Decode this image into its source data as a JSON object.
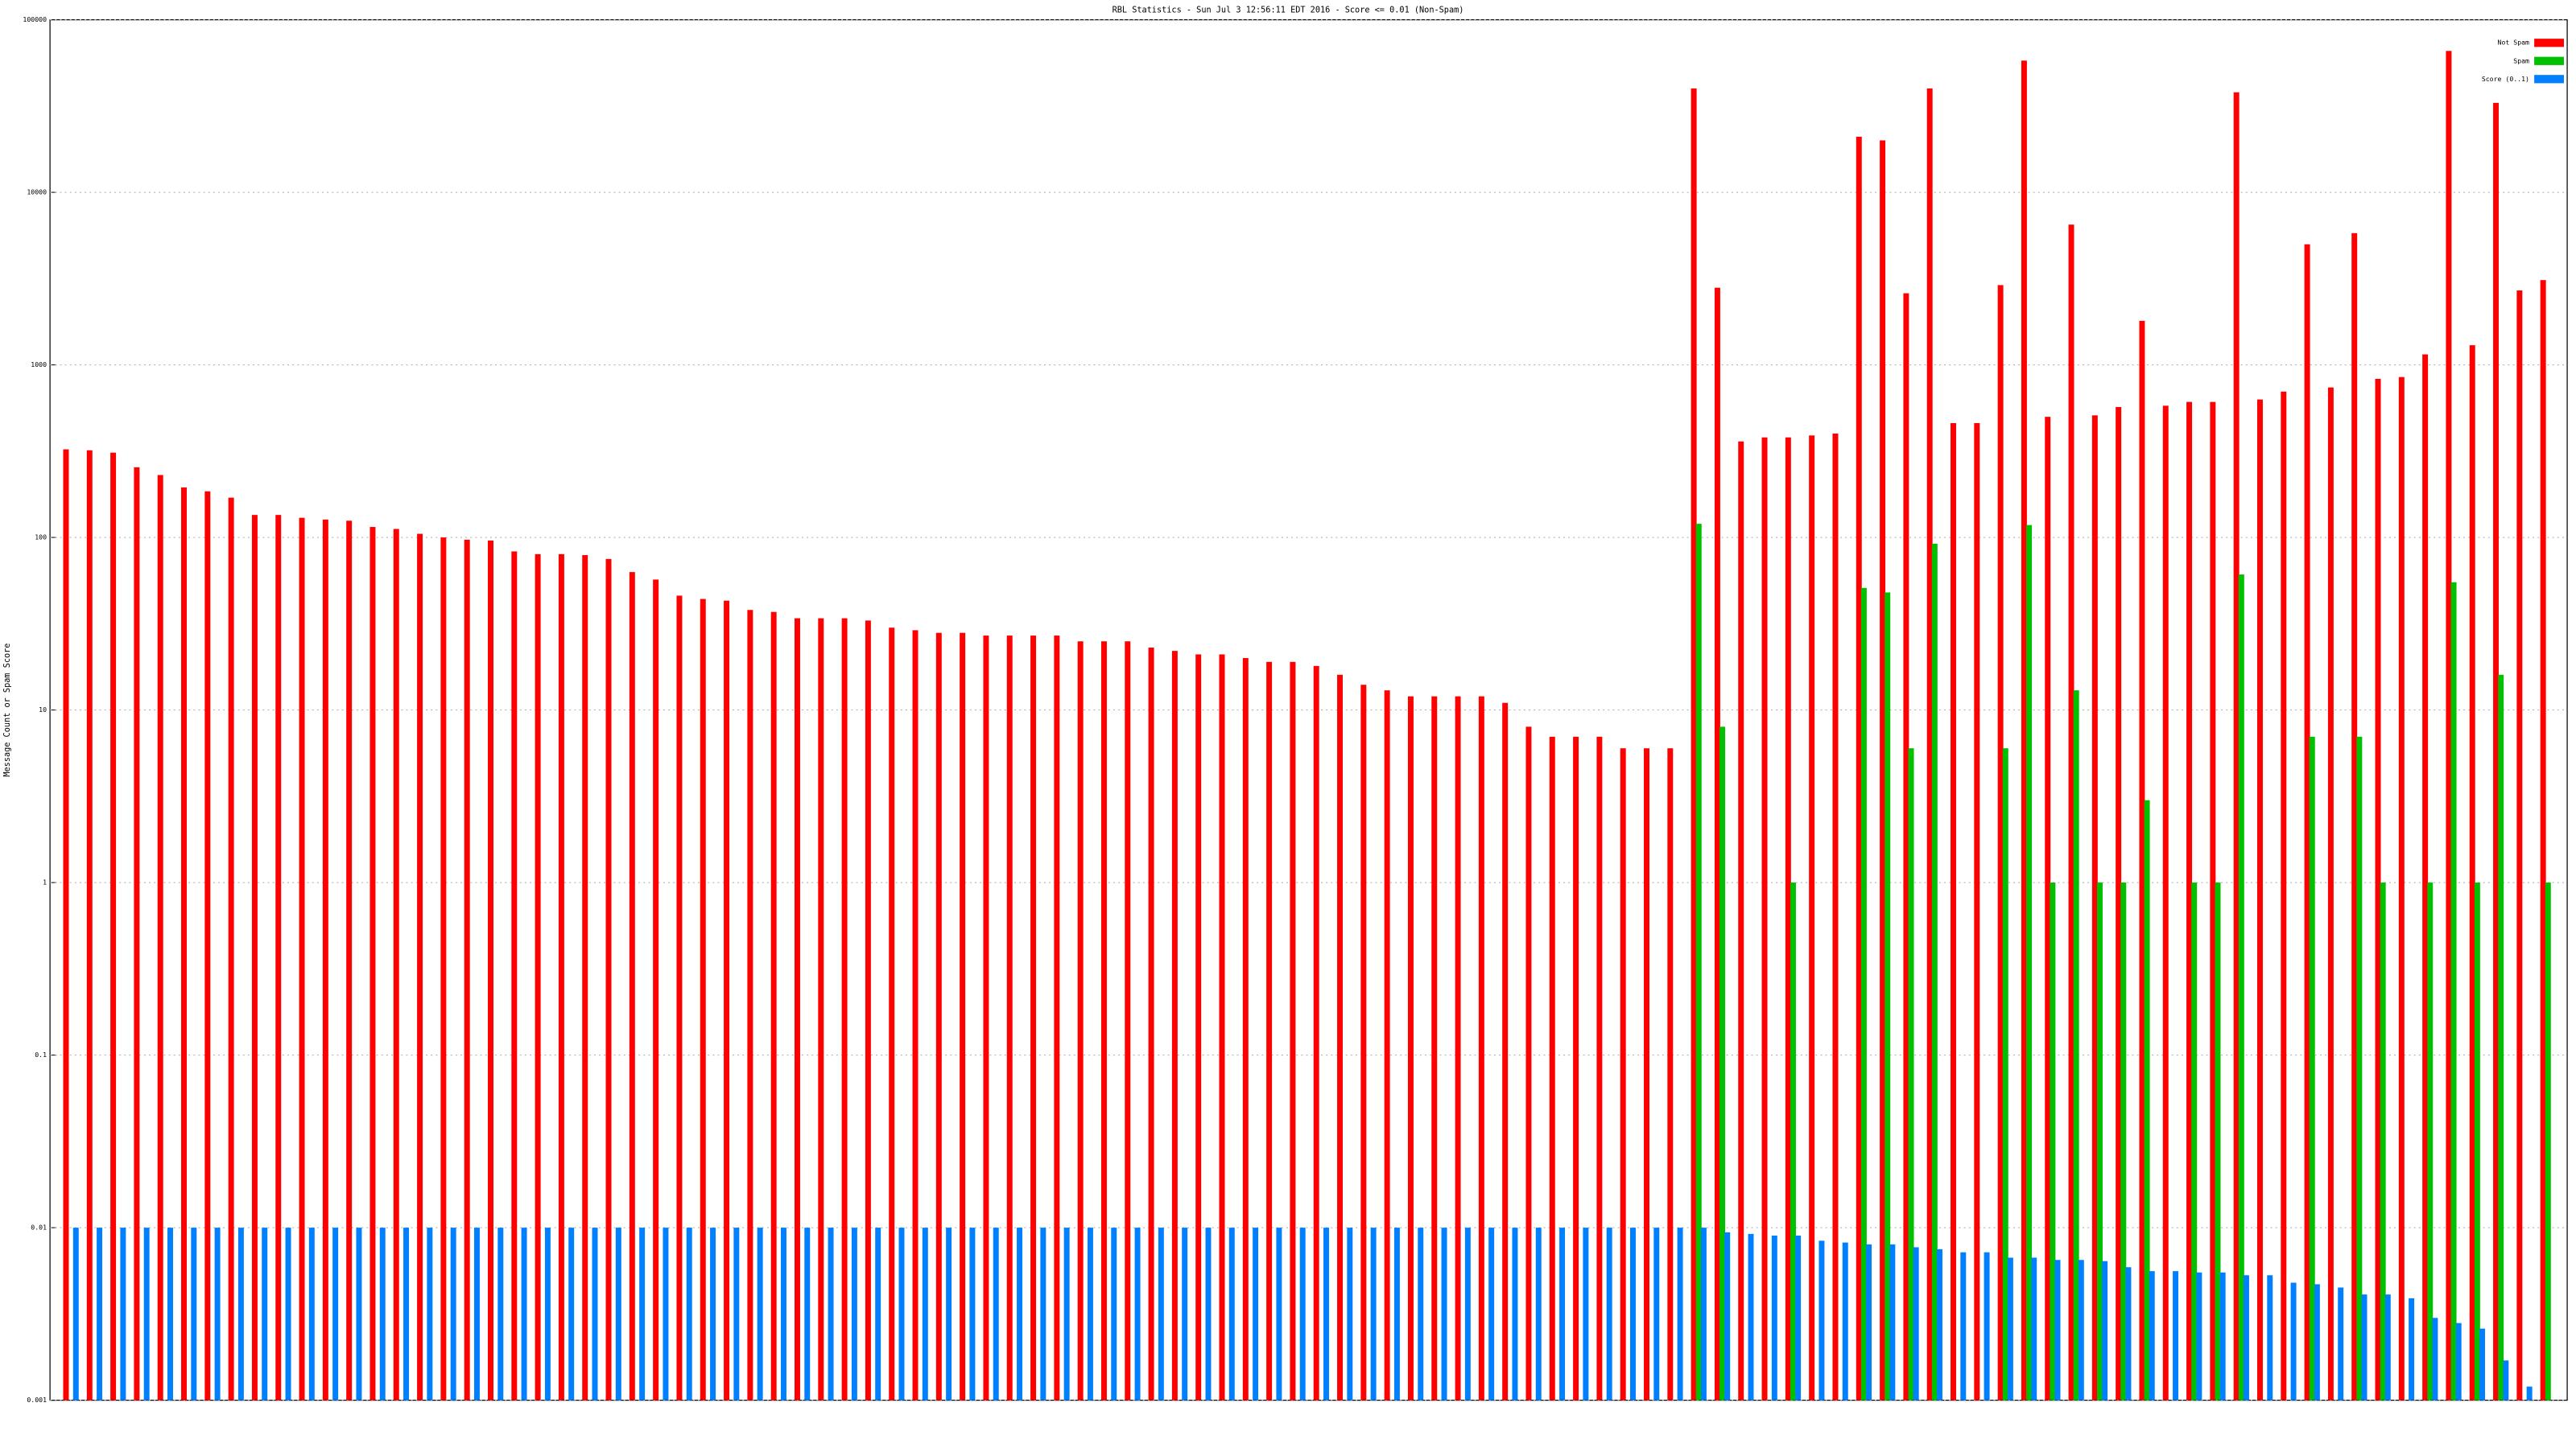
{
  "chart_data": {
    "type": "bar",
    "title": "RBL Statistics - Sun Jul  3 12:56:11 EDT 2016 - Score <= 0.01 (Non-Spam)",
    "y_label": "Message Count or Spam Score",
    "log_scale": true,
    "grid": true,
    "legend": "top-right",
    "ylim": [
      0.001,
      100000
    ],
    "yticks": [
      0.001,
      0.01,
      0.1,
      1,
      10,
      100,
      1000,
      10000,
      100000
    ],
    "categories": [
      null,
      null,
      null,
      null,
      null,
      null,
      null,
      null,
      null,
      null,
      null,
      null,
      null,
      null,
      null,
      null,
      null,
      null,
      null,
      null,
      null,
      null,
      null,
      null,
      null,
      null,
      null,
      null,
      null,
      null,
      null,
      null,
      null,
      null,
      null,
      null,
      null,
      null,
      null,
      null,
      null,
      null,
      null,
      null,
      null,
      null,
      null,
      null,
      null,
      null,
      null,
      null,
      null,
      null,
      null,
      null,
      null,
      null,
      null,
      null,
      null,
      null,
      null,
      null,
      null,
      null,
      null,
      null,
      null,
      null,
      null,
      null,
      null,
      null,
      null,
      null,
      null,
      null,
      null,
      null,
      null,
      null,
      null,
      null,
      null,
      null,
      null,
      null,
      null,
      null,
      null,
      null,
      null,
      null,
      null,
      null,
      null,
      null,
      null,
      null,
      null,
      null,
      null,
      null,
      null,
      null
    ],
    "series": [
      {
        "name": "Not Spam",
        "color": "#ff0000",
        "values": [
          324,
          320,
          310,
          255,
          230,
          195,
          185,
          170,
          135,
          135,
          130,
          127,
          125,
          115,
          112,
          105,
          100,
          97,
          96,
          83,
          80,
          80,
          79,
          75,
          63,
          57,
          46,
          44,
          43,
          38,
          37,
          34,
          34,
          34,
          33,
          30,
          29,
          28,
          28,
          27,
          27,
          27,
          27,
          25,
          25,
          25,
          23,
          22,
          21,
          21,
          20,
          19,
          19,
          18,
          16,
          14,
          13,
          12,
          12,
          12,
          12,
          11,
          8,
          7,
          7,
          7,
          6,
          6,
          6,
          40000,
          2800,
          360,
          380,
          380,
          390,
          400,
          21000,
          20000,
          2600,
          40000,
          460,
          460,
          2900,
          58000,
          500,
          6500,
          510,
          570,
          1800,
          580,
          610,
          610,
          38000,
          630,
          700,
          5000,
          740,
          5800,
          830,
          850,
          1150,
          66000,
          1300,
          33000,
          2700,
          3100
        ]
      },
      {
        "name": "Spam",
        "color": "#00c000",
        "values": [
          null,
          null,
          null,
          null,
          null,
          null,
          null,
          null,
          null,
          null,
          null,
          null,
          null,
          null,
          null,
          null,
          null,
          null,
          null,
          null,
          null,
          null,
          null,
          null,
          null,
          null,
          null,
          null,
          null,
          null,
          null,
          null,
          null,
          null,
          null,
          null,
          null,
          null,
          null,
          null,
          null,
          null,
          null,
          null,
          null,
          null,
          null,
          null,
          null,
          null,
          null,
          null,
          null,
          null,
          null,
          null,
          null,
          null,
          null,
          null,
          null,
          null,
          null,
          null,
          null,
          null,
          null,
          null,
          null,
          120,
          8,
          null,
          null,
          1,
          null,
          null,
          51,
          48,
          6,
          92,
          null,
          null,
          6,
          118,
          1,
          13,
          1,
          1,
          3,
          null,
          1,
          1,
          61,
          null,
          null,
          7,
          null,
          7,
          1,
          null,
          1,
          55,
          1,
          16,
          null,
          1
        ]
      },
      {
        "name": "Score (0..1)",
        "color": "#0080ff",
        "values": [
          0.01,
          0.01,
          0.01,
          0.01,
          0.01,
          0.01,
          0.01,
          0.01,
          0.01,
          0.01,
          0.01,
          0.01,
          0.01,
          0.01,
          0.01,
          0.01,
          0.01,
          0.01,
          0.01,
          0.01,
          0.01,
          0.01,
          0.01,
          0.01,
          0.01,
          0.01,
          0.01,
          0.01,
          0.01,
          0.01,
          0.01,
          0.01,
          0.01,
          0.01,
          0.01,
          0.01,
          0.01,
          0.01,
          0.01,
          0.01,
          0.01,
          0.01,
          0.01,
          0.01,
          0.01,
          0.01,
          0.01,
          0.01,
          0.01,
          0.01,
          0.01,
          0.01,
          0.01,
          0.01,
          0.01,
          0.01,
          0.01,
          0.01,
          0.01,
          0.01,
          0.01,
          0.01,
          0.01,
          0.01,
          0.01,
          0.01,
          0.01,
          0.01,
          0.01,
          0.01,
          0.0094,
          0.0092,
          0.009,
          0.009,
          0.0084,
          0.0082,
          0.008,
          0.008,
          0.0077,
          0.0075,
          0.0072,
          0.0072,
          0.0067,
          0.0067,
          0.0065,
          0.0065,
          0.0064,
          0.0059,
          0.0056,
          0.0056,
          0.0055,
          0.0055,
          0.0053,
          0.0053,
          0.0048,
          0.0047,
          0.0045,
          0.0041,
          0.0041,
          0.0039,
          0.003,
          0.0028,
          0.0026,
          0.0017,
          0.0012,
          null
        ]
      }
    ]
  }
}
